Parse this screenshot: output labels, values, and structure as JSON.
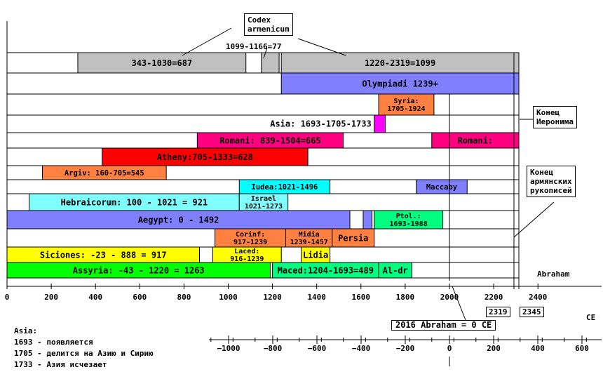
{
  "rows": [
    {
      "segments": [
        {
          "start": 320,
          "end": 1080,
          "color": "#c0c0c0",
          "label": "343-1030=687"
        },
        {
          "start": 1150,
          "end": 1230,
          "color": "#c0c0c0",
          "label": ""
        },
        {
          "start": 1240,
          "end": 2330,
          "color": "#c0c0c0",
          "label": "1220-2319=1099"
        }
      ]
    },
    {
      "segments": [
        {
          "start": 1240,
          "end": 2350,
          "color": "#8080ff",
          "label": "Olympiadi  1239+"
        }
      ]
    },
    {
      "segments": [
        {
          "start": 1680,
          "end": 1930,
          "color": "#ff8040",
          "label": "Syria:\n1705-1924"
        }
      ]
    },
    {
      "segments": [
        {
          "start": 1660,
          "end": 1710,
          "color": "#ff00ff",
          "label": ""
        }
      ],
      "outer_label": "Asia: 1693-1705-1733"
    },
    {
      "segments": [
        {
          "start": 860,
          "end": 1520,
          "color": "#ff0080",
          "label": "Romani: 839-1504=665"
        },
        {
          "start": 1920,
          "end": 2350,
          "color": "#ff0080",
          "label": "Romani:"
        }
      ]
    },
    {
      "segments": [
        {
          "start": 430,
          "end": 1360,
          "color": "#ff0000",
          "label": "Atheny:705-1333=628"
        }
      ]
    },
    {
      "segments": [
        {
          "start": 160,
          "end": 720,
          "color": "#ff8040",
          "label": "Argiv: 160-705=545"
        }
      ]
    },
    {
      "segments": [
        {
          "start": 1050,
          "end": 1460,
          "color": "#00ffff",
          "label": "Iudea:1021-1496"
        },
        {
          "start": 1850,
          "end": 2080,
          "color": "#8080ff",
          "label": "Maccaby"
        }
      ]
    },
    {
      "segments": [
        {
          "start": 100,
          "end": 1050,
          "color": "#80ffff",
          "label": "Hebraicorum: 100 - 1021 = 921"
        },
        {
          "start": 1050,
          "end": 1270,
          "color": "#80ffff",
          "label": "Israel\n1021-1273"
        }
      ]
    },
    {
      "segments": [
        {
          "start": 0,
          "end": 1550,
          "color": "#8080ff",
          "label": "Aegypt: 0 - 1492"
        },
        {
          "start": 1610,
          "end": 1650,
          "color": "#8080ff",
          "label": ""
        },
        {
          "start": 1660,
          "end": 1970,
          "color": "#00ff80",
          "label": "Ptol.:\n1693-1988"
        }
      ]
    },
    {
      "segments": [
        {
          "start": 940,
          "end": 1260,
          "color": "#ff8040",
          "label": "Corinf:\n917-1239"
        },
        {
          "start": 1260,
          "end": 1470,
          "color": "#ff8040",
          "label": "Midia\n1239-1457"
        },
        {
          "start": 1470,
          "end": 1660,
          "color": "#ff8040",
          "label": "Persia"
        }
      ]
    },
    {
      "segments": [
        {
          "start": 0,
          "end": 870,
          "color": "#ffff00",
          "label": "Siciones: -23 - 888 = 917"
        },
        {
          "start": 930,
          "end": 1240,
          "color": "#ffff00",
          "label": "Laced:\n916-1239"
        },
        {
          "start": 1330,
          "end": 1460,
          "color": "#ffff00",
          "label": "Lidia"
        }
      ]
    },
    {
      "segments": [
        {
          "start": 0,
          "end": 1190,
          "color": "#00ff00",
          "label": "Assyria: -43 - 1220 = 1263"
        },
        {
          "start": 1200,
          "end": 1680,
          "color": "#00ff80",
          "label": "Maced:1204-1693=489"
        },
        {
          "start": 1680,
          "end": 1830,
          "color": "#00ff80",
          "label": "Al-dr"
        }
      ]
    }
  ],
  "axes": {
    "main": {
      "ticks": [
        0,
        200,
        400,
        600,
        800,
        1000,
        1200,
        1400,
        1600,
        1800,
        2000,
        2200,
        2400
      ]
    },
    "ce": {
      "ticks": [
        -1000,
        -800,
        -600,
        -400,
        -200,
        0,
        200,
        400,
        600
      ],
      "label": "CE"
    }
  },
  "annotations": {
    "codex": "Codex\narmenicum",
    "period_1099": "1099-1166=77",
    "konec_ieronima": "Конец\nИеронима",
    "konec_rukopisei": "Конец\nармянских\nрукописей",
    "abraham": "Abraham",
    "y2319": "2319",
    "y2345": "2345",
    "abraham_zero": "2016 Abraham = 0 CE"
  },
  "asia_note": {
    "title": "Asia:",
    "lines": [
      "1693 - появляется",
      "1705 - делится на Азию и Сирию",
      "1733 - Азия исчезает"
    ]
  }
}
